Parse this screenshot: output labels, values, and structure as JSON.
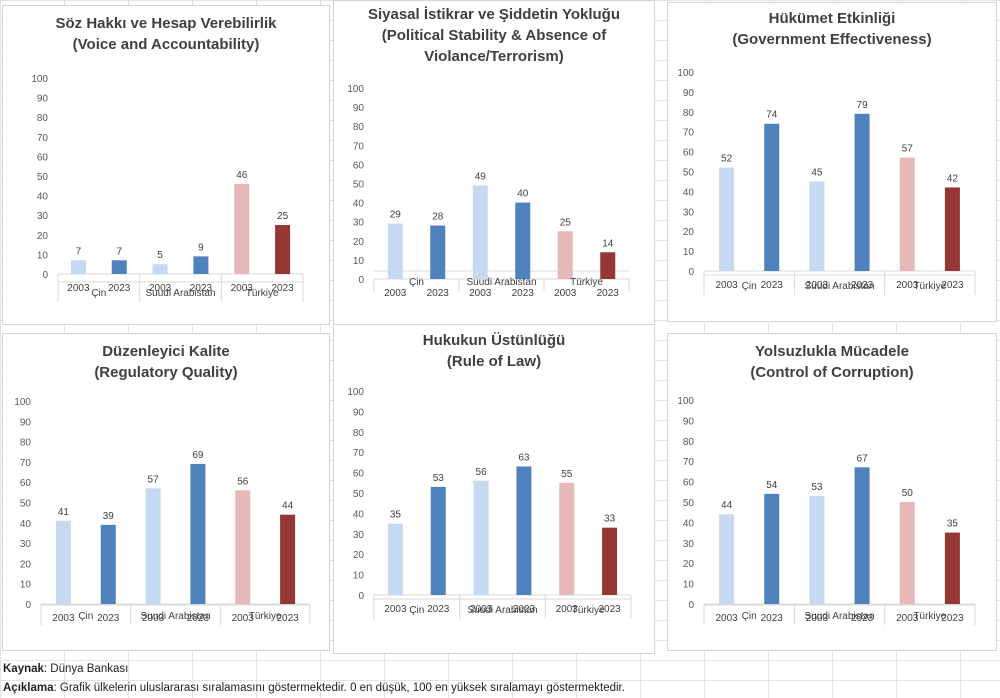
{
  "footer": {
    "source_label": "Kaynak",
    "source_text": ": Dünya Bankası",
    "note_label": "Açıklama",
    "note_text": ": Grafik ülkelerin uluslararası sıralamasını göstermektedir. 0 en düşük, 100 en yüksek sıralamayı göstermektedir."
  },
  "colors": {
    "cin_2003": "#c5d9f1",
    "cin_2023": "#4f81bd",
    "sa_2003": "#c5d9f1",
    "sa_2023": "#4f81bd",
    "tr_2003": "#e6b8b7",
    "tr_2023": "#953735"
  },
  "chart_data": [
    {
      "type": "bar",
      "title_lines": [
        "Söz Hakkı ve Hesap Verebilirlik",
        "(Voice and Accountability)"
      ],
      "groups": [
        "Çin",
        "Suudi Arabistan",
        "Türkiye"
      ],
      "years": [
        "2003",
        "2023"
      ],
      "values": [
        7,
        7,
        5,
        9,
        46,
        25
      ],
      "ylim": [
        0,
        100
      ],
      "yticks": [
        0,
        10,
        20,
        30,
        40,
        50,
        60,
        70,
        80,
        90,
        100
      ]
    },
    {
      "type": "bar",
      "title_lines": [
        "Siyasal İstikrar ve Şiddetin Yokluğu",
        "(Political Stability & Absence of",
        "Violance/Terrorism)"
      ],
      "groups": [
        "Çin",
        "Suudi Arabistan",
        "Türkiye"
      ],
      "years": [
        "2003",
        "2023"
      ],
      "values": [
        29,
        28,
        49,
        40,
        25,
        14
      ],
      "ylim": [
        0,
        100
      ],
      "yticks": [
        0,
        10,
        20,
        30,
        40,
        50,
        60,
        70,
        80,
        90,
        100
      ]
    },
    {
      "type": "bar",
      "title_lines": [
        "Hükümet Etkinliği",
        "(Government Effectiveness)"
      ],
      "groups": [
        "Çin",
        "Suudi Arabistan",
        "Türkiye"
      ],
      "years": [
        "2003",
        "2023"
      ],
      "values": [
        52,
        74,
        45,
        79,
        57,
        42
      ],
      "ylim": [
        0,
        100
      ],
      "yticks": [
        0,
        10,
        20,
        30,
        40,
        50,
        60,
        70,
        80,
        90,
        100
      ]
    },
    {
      "type": "bar",
      "title_lines": [
        "Düzenleyici Kalite",
        "(Regulatory Quality)"
      ],
      "groups": [
        "Çin",
        "Suudi Arabistan",
        "Türkiye"
      ],
      "years": [
        "2003",
        "2023"
      ],
      "values": [
        41,
        39,
        57,
        69,
        56,
        44
      ],
      "ylim": [
        0,
        100
      ],
      "yticks": [
        0,
        10,
        20,
        30,
        40,
        50,
        60,
        70,
        80,
        90,
        100
      ]
    },
    {
      "type": "bar",
      "title_lines": [
        "Hukukun Üstünlüğü",
        "(Rule of Law)"
      ],
      "groups": [
        "Çin",
        "Suudi Arabistan",
        "Türkiye"
      ],
      "years": [
        "2003",
        "2023"
      ],
      "values": [
        35,
        53,
        56,
        63,
        55,
        33
      ],
      "ylim": [
        0,
        100
      ],
      "yticks": [
        0,
        10,
        20,
        30,
        40,
        50,
        60,
        70,
        80,
        90,
        100
      ]
    },
    {
      "type": "bar",
      "title_lines": [
        "Yolsuzlukla Mücadele",
        "(Control of Corruption)"
      ],
      "groups": [
        "Çin",
        "Suudi Arabistan",
        "Türkiye"
      ],
      "years": [
        "2003",
        "2023"
      ],
      "values": [
        44,
        54,
        53,
        67,
        50,
        35
      ],
      "ylim": [
        0,
        100
      ],
      "yticks": [
        0,
        10,
        20,
        30,
        40,
        50,
        60,
        70,
        80,
        90,
        100
      ]
    }
  ]
}
